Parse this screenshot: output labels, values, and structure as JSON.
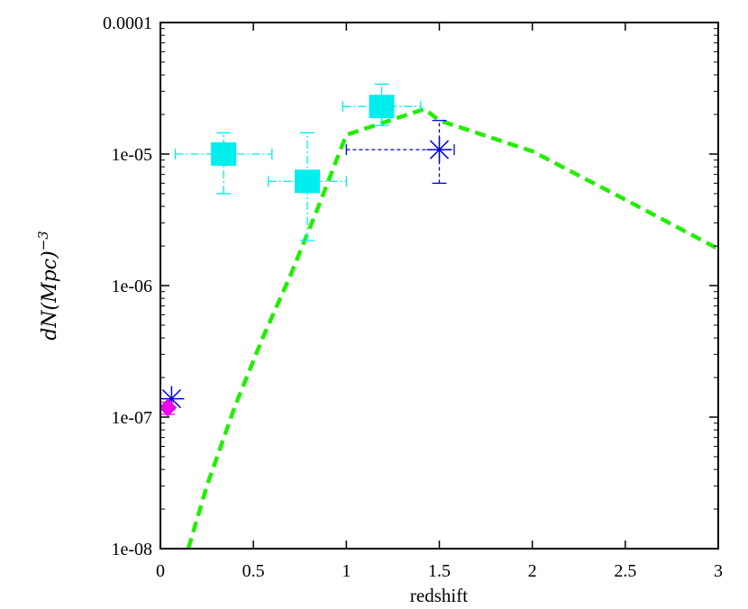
{
  "chart_data": {
    "type": "scatter",
    "xlabel": "redshift",
    "ylabel": {
      "main": "dN(Mpc)",
      "exponent": "−3"
    },
    "xlim": [
      0,
      3
    ],
    "ylim": [
      1e-08,
      0.0001
    ],
    "yscale": "log",
    "x_ticks": [
      0,
      0.5,
      1,
      1.5,
      2,
      2.5,
      3
    ],
    "x_tick_labels": [
      "0",
      "0.5",
      "1",
      "1.5",
      "2",
      "2.5",
      "3"
    ],
    "y_ticks": [
      1e-08,
      1e-07,
      1e-06,
      1e-05,
      0.0001
    ],
    "y_tick_labels": [
      "1e-08",
      "1e-07",
      "1e-06",
      "1e-05",
      "0.0001"
    ],
    "grid": false,
    "legend": "none",
    "series": [
      {
        "type": "line",
        "style": "dashed",
        "color": "#22ee00",
        "points": [
          [
            0.15,
            1e-08
          ],
          [
            0.25,
            3e-08
          ],
          [
            0.4,
            1.2e-07
          ],
          [
            0.55,
            4e-07
          ],
          [
            0.7,
            1.2e-06
          ],
          [
            0.85,
            4e-06
          ],
          [
            1.0,
            1.4e-05
          ],
          [
            1.42,
            2.2e-05
          ],
          [
            1.5,
            1.8e-05
          ],
          [
            2.0,
            1.05e-05
          ],
          [
            2.5,
            4.5e-06
          ],
          [
            3.0,
            1.9e-06
          ]
        ]
      },
      {
        "type": "scatter",
        "marker": "square",
        "color": "#00eeee",
        "points": [
          {
            "x": 0.34,
            "y": 1e-05,
            "xerr": [
              0.08,
              0.6
            ],
            "yerr": [
              5e-06,
              1.45e-05
            ]
          },
          {
            "x": 0.79,
            "y": 6.2e-06,
            "xerr": [
              0.58,
              1.0
            ],
            "yerr": [
              2.2e-06,
              1.45e-05
            ]
          },
          {
            "x": 1.19,
            "y": 2.3e-05,
            "xerr": [
              0.98,
              1.4
            ],
            "yerr": [
              1.65e-05,
              3.4e-05
            ]
          }
        ]
      },
      {
        "type": "scatter",
        "marker": "asterisk",
        "color": "#0000dd",
        "points": [
          {
            "x": 1.5,
            "y": 1.08e-05,
            "xerr": [
              1.0,
              1.58
            ],
            "yerr": [
              6e-06,
              1.8e-05
            ]
          },
          {
            "x": 0.06,
            "y": 1.38e-07
          }
        ]
      },
      {
        "type": "scatter",
        "marker": "diamond",
        "color": "#ee00ee",
        "points": [
          {
            "x": 0.04,
            "y": 1.18e-07,
            "yerr": [
              1.05e-07,
              1.3e-07
            ]
          }
        ]
      }
    ]
  }
}
